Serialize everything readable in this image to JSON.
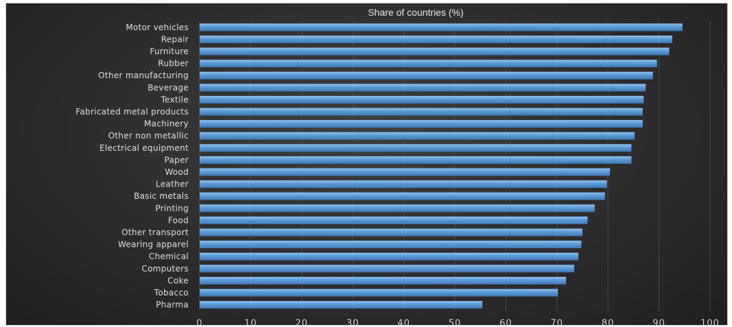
{
  "chart_data": {
    "type": "bar",
    "orientation": "horizontal",
    "title": "Share of countries (%)",
    "categories": [
      "Motor vehicles",
      "Repair",
      "Furniture",
      "Rubber",
      "Other manufacturing",
      "Beverage",
      "Textile",
      "Fabricated metal products",
      "Machinery",
      "Other non metallic",
      "Electrical equipment",
      "Paper",
      "Wood",
      "Leather",
      "Basic metals",
      "Printing",
      "Food",
      "Other transport",
      "Wearing apparel",
      "Chemical",
      "Computers",
      "Coke",
      "Tobacco",
      "Pharma"
    ],
    "values": [
      94.6,
      92.6,
      92.0,
      89.6,
      88.8,
      87.4,
      87.0,
      86.8,
      86.8,
      85.2,
      84.6,
      84.6,
      80.4,
      79.8,
      79.4,
      77.4,
      76.0,
      75.0,
      74.8,
      74.2,
      73.4,
      71.8,
      70.2,
      55.4
    ],
    "xlim": [
      0,
      100
    ],
    "xticks": [
      0,
      10,
      20,
      30,
      40,
      50,
      60,
      70,
      80,
      90,
      100
    ],
    "grid": true,
    "bar_color": "#5b9bd5",
    "background": "#2e2e2e"
  }
}
